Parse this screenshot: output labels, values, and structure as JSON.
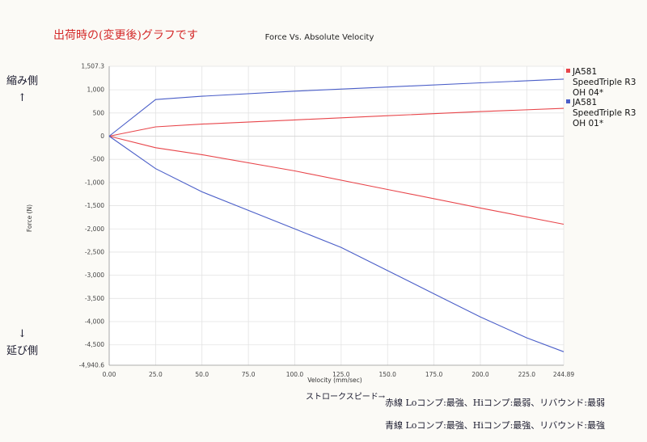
{
  "annotations": {
    "top_note": "出荷時の(変更後)グラフです",
    "compression_side": "縮み側",
    "up_arrow": "↑",
    "down_arrow": "↓",
    "extension_side": "延び側",
    "stroke_speed": "ストロークスピード→",
    "red_line_note": "赤線  Loコンプ:最強、Hiコンプ:最弱、リバウンド:最弱",
    "blue_line_note": "青線  Loコンプ:最強、Hiコンプ:最強、リバウンド:最強"
  },
  "colors": {
    "red": "#e8454a",
    "blue": "#5a6fd6",
    "grid": "#e3e3e3",
    "ink_red": "#d42a2a",
    "ink": "#1a1a2e"
  },
  "chart_data": {
    "type": "line",
    "title": "Force Vs. Absolute Velocity",
    "xlabel": "Velocity (mm/sec)",
    "ylabel": "Force (N)",
    "xlim": [
      0,
      244.89
    ],
    "ylim": [
      -4940.6,
      1507.3
    ],
    "x_ticks": [
      0,
      25,
      50,
      75,
      100,
      125,
      150,
      175,
      200,
      225,
      244.89
    ],
    "x_tick_labels": [
      "0.00",
      "25.0",
      "50.0",
      "75.0",
      "100.0",
      "125.0",
      "150.0",
      "175.0",
      "200.0",
      "225.0",
      "244.89"
    ],
    "y_ticks": [
      1507.3,
      1000,
      500,
      0,
      -500,
      -1000,
      -1500,
      -2000,
      -2500,
      -3000,
      -3500,
      -4000,
      -4500,
      -4940.6
    ],
    "y_tick_labels": [
      "1,507.3",
      "1,000",
      "500",
      "0",
      "-500",
      "-1,000",
      "-1,500",
      "-2,000",
      "-2,500",
      "-3,000",
      "-3,500",
      "-4,000",
      "-4,500",
      "-4,940.6"
    ],
    "grid": true,
    "legend_position": "right",
    "series": [
      {
        "name": "JA581 SpeedTriple R3 OH 04*",
        "legend_lines": [
          "JA581",
          "SpeedTriple R3",
          "OH 04*"
        ],
        "color": "#e8454a",
        "segments": [
          {
            "x": [
              0,
              25,
              50,
              100,
              150,
              200,
              244.89
            ],
            "y": [
              0,
              200,
              260,
              350,
              440,
              530,
              600
            ]
          },
          {
            "x": [
              0,
              25,
              50,
              100,
              150,
              200,
              244.89
            ],
            "y": [
              0,
              -250,
              -400,
              -750,
              -1150,
              -1550,
              -1900
            ]
          }
        ]
      },
      {
        "name": "JA581 SpeedTriple R3 OH 01*",
        "legend_lines": [
          "JA581",
          "SpeedTriple R3",
          "OH 01*"
        ],
        "color": "#4a5ec8",
        "segments": [
          {
            "x": [
              0,
              25,
              50,
              100,
              150,
              200,
              244.89
            ],
            "y": [
              0,
              790,
              860,
              970,
              1060,
              1150,
              1230
            ]
          },
          {
            "x": [
              0,
              25,
              50,
              100,
              125,
              150,
              175,
              200,
              225,
              244.89
            ],
            "y": [
              0,
              -700,
              -1200,
              -2000,
              -2400,
              -2900,
              -3400,
              -3900,
              -4350,
              -4650
            ]
          }
        ]
      }
    ]
  }
}
